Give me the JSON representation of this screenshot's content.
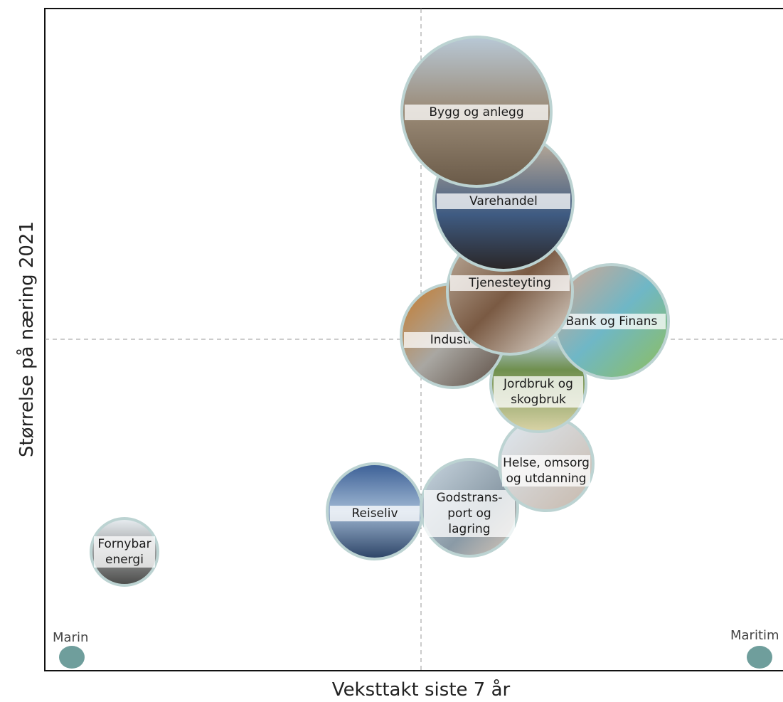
{
  "chart_data": {
    "x_label": "Veksttakt siste 7 år",
    "y_label": "Størrelse på næring 2021",
    "corner_labels": [
      "Marin",
      "Maritim"
    ],
    "bubbles": [
      {
        "label": [
          "Fornybar",
          "energi"
        ]
      },
      {
        "label": [
          "Reiseliv"
        ]
      },
      {
        "label": [
          "Godstrans-",
          "port og",
          "lagring"
        ]
      },
      {
        "label": [
          "Helse, omsorg",
          "og utdanning"
        ]
      },
      {
        "label": [
          "Jordbruk og",
          "skogbruk"
        ]
      },
      {
        "label": [
          "Industri"
        ]
      },
      {
        "label": [
          "Bank og Finans"
        ]
      },
      {
        "label": [
          "Tjenesteyting"
        ]
      },
      {
        "label": [
          "Varehandel"
        ]
      },
      {
        "label": [
          "Bygg og anlegg"
        ]
      }
    ]
  }
}
